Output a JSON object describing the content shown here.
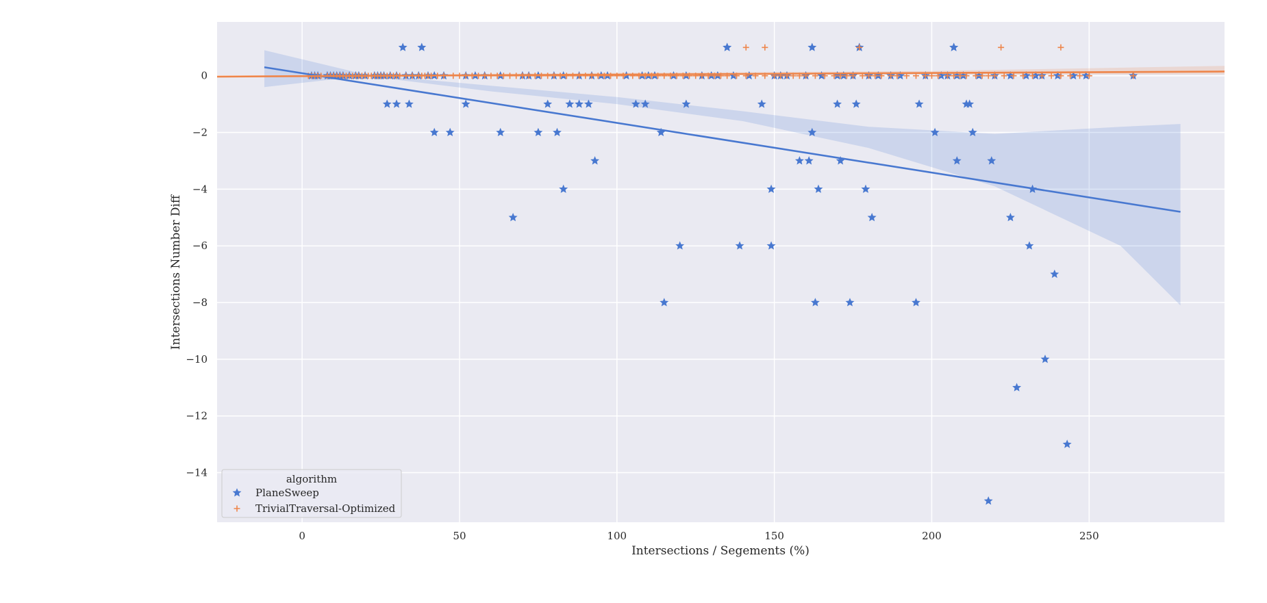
{
  "chart_data": {
    "type": "scatter",
    "title": "",
    "xlabel": "Intersections / Segements (%)",
    "ylabel": "Intersections Number Diff",
    "xlim": [
      -27,
      293
    ],
    "ylim": [
      -15.75,
      1.9
    ],
    "xticks": [
      0,
      50,
      100,
      150,
      200,
      250
    ],
    "yticks": [
      0,
      -2,
      -4,
      -6,
      -8,
      -10,
      -12,
      -14
    ],
    "grid": true,
    "background": "#eaeaf2",
    "legend": {
      "title": "algorithm",
      "placement": "lower-left",
      "entries": [
        "PlaneSweep",
        "TrivialTraversal-Optimized"
      ]
    },
    "series": [
      {
        "name": "PlaneSweep",
        "marker": "star",
        "color": "#4878d0",
        "x": [
          3,
          4,
          5,
          8,
          9,
          10,
          11,
          12,
          13,
          15,
          17,
          18,
          20,
          23,
          24,
          25,
          26,
          28,
          30,
          33,
          35,
          37,
          40,
          42,
          45,
          52,
          55,
          58,
          63,
          70,
          72,
          75,
          80,
          83,
          88,
          92,
          95,
          97,
          103,
          108,
          110,
          112,
          118,
          122,
          127,
          130,
          132,
          137,
          142,
          150,
          152,
          154,
          160,
          165,
          170,
          172,
          175,
          180,
          183,
          187,
          190,
          198,
          203,
          205,
          208,
          210,
          215,
          220,
          225,
          230,
          233,
          235,
          240,
          245,
          249,
          264,
          27,
          30,
          34,
          42,
          47,
          52,
          63,
          67,
          75,
          78,
          81,
          83,
          85,
          88,
          91,
          93,
          106,
          109,
          114,
          115,
          120,
          122,
          135,
          139,
          146,
          149,
          149,
          158,
          161,
          162,
          163,
          164,
          170,
          171,
          174,
          176,
          177,
          179,
          181,
          195,
          196,
          201,
          207,
          208,
          211,
          212,
          213,
          218,
          219,
          225,
          227,
          231,
          232,
          236,
          239,
          243,
          32,
          38,
          135,
          162,
          177,
          207
        ],
        "y": [
          0,
          0,
          0,
          0,
          0,
          0,
          0,
          0,
          0,
          0,
          0,
          0,
          0,
          0,
          0,
          0,
          0,
          0,
          0,
          0,
          0,
          0,
          0,
          0,
          0,
          0,
          0,
          0,
          0,
          0,
          0,
          0,
          0,
          0,
          0,
          0,
          0,
          0,
          0,
          0,
          0,
          0,
          0,
          0,
          0,
          0,
          0,
          0,
          0,
          0,
          0,
          0,
          0,
          0,
          0,
          0,
          0,
          0,
          0,
          0,
          0,
          0,
          0,
          0,
          0,
          0,
          0,
          0,
          0,
          0,
          0,
          0,
          0,
          0,
          0,
          0,
          -1,
          -1,
          -1,
          -2,
          -2,
          -1,
          -2,
          -5,
          -2,
          -1,
          -2,
          -4,
          -1,
          -1,
          -1,
          -3,
          -1,
          -1,
          -2,
          -8,
          -6,
          -1,
          1,
          -6,
          -1,
          -4,
          -6,
          -3,
          -3,
          -2,
          -8,
          -4,
          -1,
          -3,
          -8,
          -1,
          1,
          -4,
          -5,
          -8,
          -1,
          -2,
          1,
          -3,
          -1,
          -1,
          -2,
          -15,
          -3,
          -5,
          -11,
          -6,
          -4,
          -10,
          -7,
          -13,
          1,
          1,
          1,
          1,
          1,
          1
        ]
      },
      {
        "name": "TrivialTraversal-Optimized",
        "marker": "plus",
        "color": "#ee854a",
        "x": [
          2,
          3,
          4,
          5,
          6,
          8,
          9,
          10,
          11,
          12,
          13,
          14,
          15,
          16,
          17,
          18,
          19,
          20,
          21,
          22,
          23,
          24,
          25,
          26,
          27,
          28,
          29,
          30,
          31,
          33,
          35,
          37,
          38,
          39,
          40,
          41,
          43,
          45,
          48,
          50,
          52,
          54,
          56,
          58,
          60,
          62,
          64,
          66,
          68,
          70,
          72,
          74,
          76,
          78,
          80,
          82,
          84,
          86,
          88,
          90,
          92,
          94,
          96,
          98,
          100,
          102,
          105,
          107,
          109,
          111,
          113,
          115,
          117,
          119,
          121,
          123,
          125,
          127,
          129,
          131,
          133,
          135,
          138,
          141,
          144,
          147,
          150,
          152,
          154,
          156,
          158,
          160,
          163,
          166,
          169,
          171,
          173,
          175,
          178,
          180,
          182,
          184,
          187,
          189,
          192,
          195,
          198,
          200,
          202,
          205,
          207,
          209,
          211,
          214,
          216,
          218,
          220,
          223,
          226,
          229,
          232,
          235,
          238,
          241,
          244,
          247,
          250,
          264,
          141,
          147,
          177,
          222,
          241
        ],
        "y": [
          0,
          0,
          0,
          0,
          0,
          0,
          0,
          0,
          0,
          0,
          0,
          0,
          0,
          0,
          0,
          0,
          0,
          0,
          0,
          0,
          0,
          0,
          0,
          0,
          0,
          0,
          0,
          0,
          0,
          0,
          0,
          0,
          0,
          0,
          0,
          0,
          0,
          0,
          0,
          0,
          0,
          0,
          0,
          0,
          0,
          0,
          0,
          0,
          0,
          0,
          0,
          0,
          0,
          0,
          0,
          0,
          0,
          0,
          0,
          0,
          0,
          0,
          0,
          0,
          0,
          0,
          0,
          0,
          0,
          0,
          0,
          0,
          0,
          0,
          0,
          0,
          0,
          0,
          0,
          0,
          0,
          0,
          0,
          0,
          0,
          0,
          0,
          0,
          0,
          0,
          0,
          0,
          0,
          0,
          0,
          0,
          0,
          0,
          0,
          0,
          0,
          0,
          0,
          0,
          0,
          0,
          0,
          0,
          0,
          0,
          0,
          0,
          0,
          0,
          0,
          0,
          0,
          0,
          0,
          0,
          0,
          0,
          0,
          0,
          0,
          0,
          0,
          0,
          1,
          1,
          1,
          1,
          1
        ]
      }
    ],
    "regression": [
      {
        "name": "PlaneSweep",
        "color": "#4878d0",
        "x": [
          -12,
          279
        ],
        "y": [
          0.3,
          -4.8
        ],
        "ci_x": [
          -12,
          20,
          60,
          100,
          140,
          180,
          220,
          260,
          279
        ],
        "ci_upper": [
          0.9,
          0.05,
          -0.35,
          -0.75,
          -1.25,
          -1.8,
          -2.05,
          -1.8,
          -1.7
        ],
        "ci_lower": [
          -0.4,
          0.0,
          -0.55,
          -1.0,
          -1.6,
          -2.55,
          -3.9,
          -6.0,
          -8.1
        ]
      },
      {
        "name": "TrivialTraversal-Optimized",
        "color": "#ee854a",
        "x": [
          -27,
          293
        ],
        "y": [
          -0.03,
          0.15
        ],
        "ci_x": [
          -27,
          100,
          200,
          293
        ],
        "ci_upper": [
          0.0,
          0.1,
          0.17,
          0.35
        ],
        "ci_lower": [
          -0.06,
          0.03,
          0.05,
          0.05
        ]
      }
    ]
  }
}
